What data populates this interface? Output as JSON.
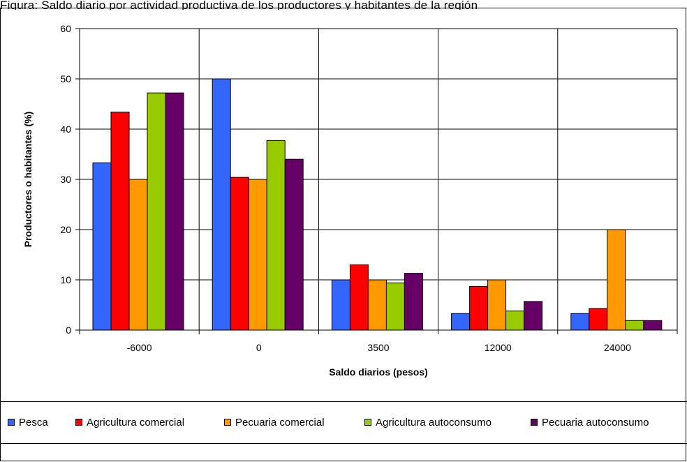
{
  "header_text": "Figura: Saldo diario por actividad productiva de los productores y habitantes de la región",
  "chart_data": {
    "type": "bar",
    "title": "",
    "xlabel": "Saldo diarios (pesos)",
    "ylabel": "Productores o habitantes (%)",
    "ylim": [
      0,
      60
    ],
    "yticks": [
      "0",
      "10",
      "20",
      "30",
      "40",
      "50",
      "60"
    ],
    "grid": true,
    "legend_position": "bottom",
    "categories": [
      "-6000",
      "0",
      "3500",
      "12000",
      "24000"
    ],
    "series": [
      {
        "name": "Pesca",
        "color": "#3366FF",
        "values": [
          33.3,
          50,
          10,
          3.3,
          3.3
        ]
      },
      {
        "name": "Agricultura comercial",
        "color": "#FF0000",
        "values": [
          43.4,
          30.4,
          13,
          8.7,
          4.3
        ]
      },
      {
        "name": "Pecuaria comercial",
        "color": "#FF9900",
        "values": [
          30,
          30,
          10,
          10,
          20
        ]
      },
      {
        "name": "Agricultura autoconsumo",
        "color": "#99CC00",
        "values": [
          47.2,
          37.7,
          9.4,
          3.8,
          1.9
        ]
      },
      {
        "name": "Pecuaria autoconsumo",
        "color": "#660066",
        "values": [
          47.2,
          34,
          11.3,
          5.7,
          1.9
        ]
      }
    ]
  }
}
